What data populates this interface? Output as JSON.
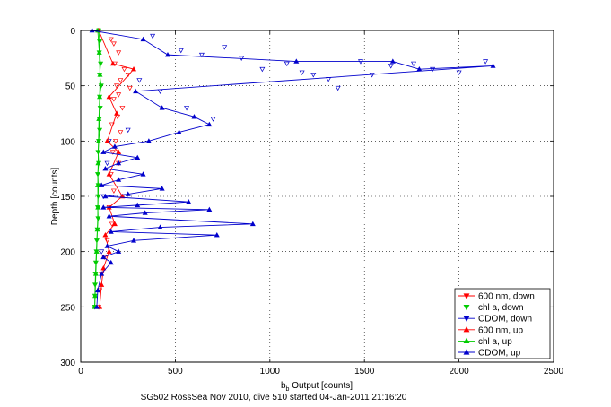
{
  "chart_data": {
    "type": "line",
    "xlabel_main": "b",
    "xlabel_sub": "b",
    "xlabel_rest": " Output [counts]",
    "ylabel": "Depth [counts]",
    "caption": "SG502 RossSea Nov 2010, dive 510 started 04-Jan-2011 21:16:20",
    "xlim": [
      0,
      2500
    ],
    "ylim": [
      0,
      300
    ],
    "y_reversed": true,
    "grid": true,
    "grid_style": "dotted",
    "legend_position": "bottom-right",
    "xticks": [
      "0",
      "500",
      "1000",
      "1500",
      "2000",
      "2500"
    ],
    "yticks": [
      "0",
      "50",
      "100",
      "150",
      "200",
      "250",
      "300"
    ],
    "series": [
      {
        "name": "600 nm, down",
        "color": "#ff0000",
        "marker": "triangle-down",
        "connected": false,
        "points": [
          [
            160,
            8
          ],
          [
            175,
            12
          ],
          [
            200,
            20
          ],
          [
            180,
            30
          ],
          [
            230,
            35
          ],
          [
            250,
            40
          ],
          [
            210,
            45
          ],
          [
            190,
            50
          ],
          [
            260,
            52
          ],
          [
            200,
            58
          ],
          [
            175,
            62
          ],
          [
            220,
            70
          ],
          [
            195,
            78
          ],
          [
            165,
            85
          ],
          [
            210,
            92
          ],
          [
            185,
            100
          ],
          [
            170,
            110
          ],
          [
            200,
            120
          ],
          [
            160,
            130
          ],
          [
            175,
            145
          ],
          [
            150,
            160
          ],
          [
            165,
            175
          ],
          [
            140,
            190
          ],
          [
            125,
            205
          ],
          [
            110,
            220
          ],
          [
            100,
            235
          ],
          [
            95,
            250
          ]
        ]
      },
      {
        "name": "chl a, down",
        "color": "#00cc00",
        "marker": "triangle-down",
        "connected": true,
        "points": [
          [
            95,
            0
          ],
          [
            100,
            10
          ],
          [
            98,
            20
          ],
          [
            105,
            30
          ],
          [
            100,
            40
          ],
          [
            108,
            50
          ],
          [
            100,
            60
          ],
          [
            103,
            70
          ],
          [
            98,
            80
          ],
          [
            100,
            90
          ],
          [
            95,
            100
          ],
          [
            92,
            110
          ],
          [
            95,
            120
          ],
          [
            90,
            130
          ],
          [
            93,
            140
          ],
          [
            92,
            150
          ],
          [
            90,
            160
          ],
          [
            92,
            170
          ],
          [
            88,
            180
          ],
          [
            85,
            190
          ],
          [
            83,
            200
          ],
          [
            80,
            210
          ],
          [
            78,
            220
          ],
          [
            76,
            230
          ],
          [
            75,
            240
          ],
          [
            74,
            250
          ]
        ]
      },
      {
        "name": "CDOM, down",
        "color": "#0000cc",
        "marker": "triangle-down",
        "connected": false,
        "points": [
          [
            380,
            5
          ],
          [
            530,
            18
          ],
          [
            640,
            22
          ],
          [
            760,
            15
          ],
          [
            850,
            25
          ],
          [
            960,
            35
          ],
          [
            1090,
            30
          ],
          [
            1170,
            38
          ],
          [
            1230,
            40
          ],
          [
            1310,
            44
          ],
          [
            1360,
            52
          ],
          [
            1480,
            28
          ],
          [
            1540,
            40
          ],
          [
            1640,
            32
          ],
          [
            1760,
            30
          ],
          [
            1860,
            35
          ],
          [
            2000,
            38
          ],
          [
            2140,
            28
          ],
          [
            310,
            45
          ],
          [
            420,
            55
          ],
          [
            560,
            70
          ],
          [
            700,
            80
          ],
          [
            250,
            90
          ],
          [
            150,
            100
          ],
          [
            140,
            120
          ],
          [
            120,
            150
          ],
          [
            110,
            200
          ]
        ]
      },
      {
        "name": "600 nm, up",
        "color": "#ff0000",
        "marker": "triangle-up",
        "connected": true,
        "points": [
          [
            95,
            0
          ],
          [
            170,
            30
          ],
          [
            280,
            35
          ],
          [
            150,
            60
          ],
          [
            190,
            75
          ],
          [
            140,
            100
          ],
          [
            200,
            110
          ],
          [
            150,
            130
          ],
          [
            220,
            150
          ],
          [
            150,
            160
          ],
          [
            180,
            175
          ],
          [
            130,
            185
          ],
          [
            150,
            200
          ],
          [
            120,
            215
          ],
          [
            110,
            230
          ],
          [
            100,
            250
          ]
        ]
      },
      {
        "name": "chl a, up",
        "color": "#00cc00",
        "marker": "triangle-up",
        "connected": true,
        "points": [
          [
            90,
            0
          ],
          [
            98,
            20
          ],
          [
            102,
            40
          ],
          [
            100,
            60
          ],
          [
            96,
            80
          ],
          [
            94,
            100
          ],
          [
            92,
            120
          ],
          [
            90,
            140
          ],
          [
            91,
            160
          ],
          [
            88,
            180
          ],
          [
            84,
            200
          ],
          [
            80,
            220
          ],
          [
            76,
            240
          ],
          [
            74,
            250
          ]
        ]
      },
      {
        "name": "CDOM, up",
        "color": "#0000cc",
        "marker": "triangle-up",
        "connected": true,
        "points": [
          [
            60,
            0
          ],
          [
            330,
            8
          ],
          [
            460,
            22
          ],
          [
            1140,
            28
          ],
          [
            1650,
            28
          ],
          [
            1790,
            35
          ],
          [
            2180,
            32
          ],
          [
            290,
            55
          ],
          [
            430,
            70
          ],
          [
            600,
            78
          ],
          [
            680,
            85
          ],
          [
            520,
            92
          ],
          [
            360,
            100
          ],
          [
            180,
            105
          ],
          [
            120,
            110
          ],
          [
            300,
            115
          ],
          [
            200,
            120
          ],
          [
            130,
            125
          ],
          [
            330,
            130
          ],
          [
            200,
            135
          ],
          [
            110,
            140
          ],
          [
            430,
            143
          ],
          [
            250,
            148
          ],
          [
            130,
            150
          ],
          [
            570,
            155
          ],
          [
            300,
            158
          ],
          [
            120,
            160
          ],
          [
            680,
            162
          ],
          [
            340,
            165
          ],
          [
            150,
            168
          ],
          [
            910,
            175
          ],
          [
            420,
            178
          ],
          [
            160,
            182
          ],
          [
            720,
            185
          ],
          [
            280,
            190
          ],
          [
            140,
            195
          ],
          [
            200,
            200
          ],
          [
            120,
            205
          ],
          [
            160,
            210
          ],
          [
            110,
            220
          ],
          [
            90,
            235
          ],
          [
            85,
            250
          ]
        ]
      }
    ]
  }
}
